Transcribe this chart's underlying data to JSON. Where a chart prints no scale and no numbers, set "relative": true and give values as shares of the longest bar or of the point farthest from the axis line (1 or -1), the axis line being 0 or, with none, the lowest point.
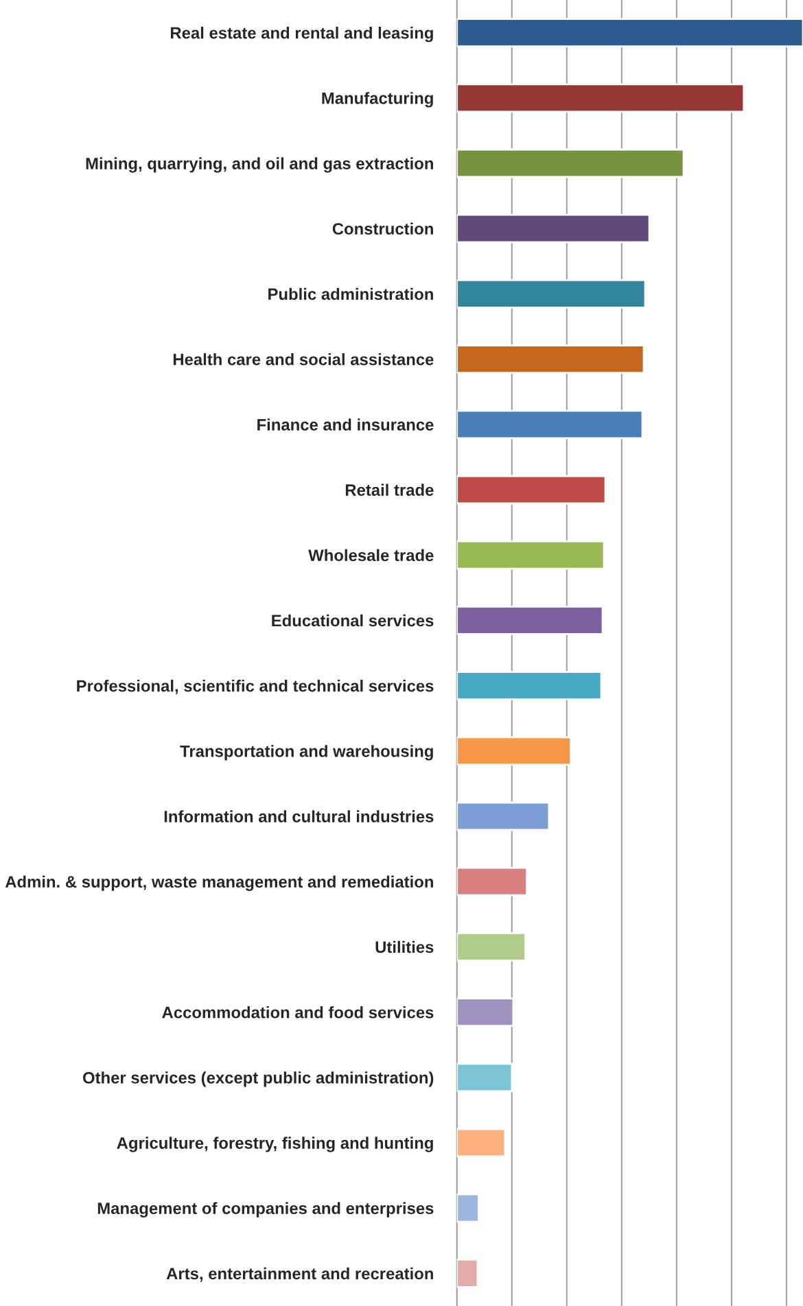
{
  "chart_data": {
    "type": "bar",
    "orientation": "horizontal",
    "relative": true,
    "grid": "x",
    "categories": [
      "Real estate and rental and leasing",
      "Manufacturing",
      "Mining, quarrying, and oil and gas extraction",
      "Construction",
      "Public administration",
      "Health care and social assistance",
      "Finance and insurance",
      "Retail trade",
      "Wholesale trade",
      "Educational services",
      "Professional, scientific and technical services",
      "Transportation and warehousing",
      "Information and cultural industries",
      "Admin. & support, waste management and remediation",
      "Utilities",
      "Accommodation and food services",
      "Other services (except public administration)",
      "Agriculture, forestry, fishing and hunting",
      "Management of companies and enterprises",
      "Arts, entertainment and recreation"
    ],
    "values": [
      1,
      0.829,
      0.655,
      0.556,
      0.544,
      0.54,
      0.536,
      0.429,
      0.425,
      0.421,
      0.417,
      0.329,
      0.266,
      0.202,
      0.198,
      0.163,
      0.159,
      0.139,
      0.063,
      0.06
    ],
    "colors": [
      "#2e5b8f",
      "#953735",
      "#77933c",
      "#604a7b",
      "#31859c",
      "#c6671f",
      "#4a7ebb",
      "#be4b48",
      "#98b954",
      "#7d60a0",
      "#46aac5",
      "#f79646",
      "#7c9ed4",
      "#d88080",
      "#afcc88",
      "#a193c0",
      "#7cc4d6",
      "#fbb07e",
      "#9eb6e0",
      "#e4aaa8"
    ]
  }
}
